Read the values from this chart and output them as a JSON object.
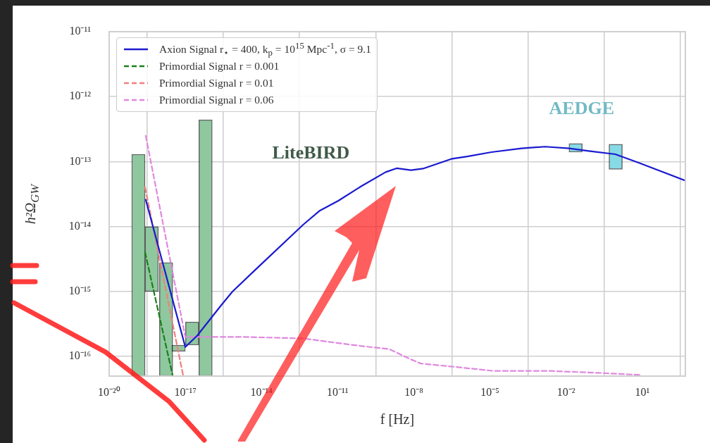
{
  "chart_data": {
    "type": "line",
    "xlabel": "f [Hz]",
    "ylabel": "h²Ω$_{GW}$",
    "log": "xy",
    "grid": true,
    "legend": "top left",
    "xlim": [
      1e-20,
      500
    ],
    "ylim": [
      5e-17,
      1e-11
    ],
    "xticks": [
      {
        "value": 1e-20,
        "label": "10⁻²⁰"
      },
      {
        "value": 1e-17,
        "label": "10⁻¹⁷"
      },
      {
        "value": 1e-14,
        "label": "10⁻¹⁴"
      },
      {
        "value": 1e-11,
        "label": "10⁻¹¹"
      },
      {
        "value": 1e-08,
        "label": "10⁻⁸"
      },
      {
        "value": 1e-05,
        "label": "10⁻⁵"
      },
      {
        "value": 0.01,
        "label": "10⁻²"
      },
      {
        "value": 10,
        "label": "10¹"
      }
    ],
    "yticks": [
      {
        "value": 1e-16,
        "label": "10⁻¹⁶"
      },
      {
        "value": 1e-15,
        "label": "10⁻¹⁵"
      },
      {
        "value": 1e-14,
        "label": "10⁻¹⁴"
      },
      {
        "value": 1e-13,
        "label": "10⁻¹³"
      },
      {
        "value": 1e-12,
        "label": "10⁻¹²"
      },
      {
        "value": 1e-11,
        "label": "10⁻¹¹"
      }
    ],
    "annotations": [
      "LiteBIRD",
      "AEDGE"
    ],
    "series": [
      {
        "type": "bar",
        "color": "#8fc89f",
        "x": [
          2.6e-19,
          8.7e-19,
          3.2e-18,
          1e-17,
          3.4e-17,
          1.15e-16
        ],
        "base": [
          5e-17,
          1e-15,
          5e-17,
          1.2e-16,
          1.5e-16,
          5e-17
        ],
        "values": [
          1.2995e-13,
          9e-15,
          2.75e-15,
          3e-17,
          1.9e-16,
          4.3995e-13
        ]
      },
      {
        "type": "bar",
        "color": "#86dbe6",
        "x": [
          0.013,
          0.49
        ],
        "base": [
          1.4e-13,
          7.6e-14
        ],
        "values": [
          5e-14,
          1.09e-13
        ]
      },
      {
        "name": "Axion Signal r$_{⋆}$ = 400, k$_{p}$ = 10$^{15}$ Mpc$^{-1}$, σ = 9.1",
        "color": "#1a1ad0",
        "line_style": "solid",
        "x": [
          2.75e-19,
          1e-17,
          2.95e-17,
          2.45e-16,
          7.2e-16,
          6e-15,
          4.4e-13,
          1.9e-12,
          1.07e-11,
          8.7e-11,
          7.8e-10,
          2.1e-09,
          7.8e-09,
          2.3e-08,
          3e-07,
          1.3e-06,
          1.15e-05,
          0.00018,
          0.0015,
          0.013,
          0.087,
          0.87,
          7.8,
          500
        ],
        "values": [
          2.6e-14,
          1.4e-16,
          2.1e-16,
          6e-16,
          1e-15,
          2.2e-15,
          1.07e-14,
          1.74e-14,
          2.5e-14,
          4.2e-14,
          6.9e-14,
          7.9e-14,
          7.4e-14,
          7.8e-14,
          1.1e-13,
          1.2e-13,
          1.4e-13,
          1.6e-13,
          1.7e-13,
          1.6e-13,
          1.45e-13,
          1.3e-13,
          9.5e-14,
          5.1e-14
        ]
      },
      {
        "name": "Primordial Signal r = 0.001",
        "color": "#1a801a",
        "line_style": "dashed",
        "x": [
          2.6e-19,
          3.2e-18
        ],
        "values": [
          4e-15,
          5e-17
        ]
      },
      {
        "name": "Primordial Signal r = 0.01",
        "color": "#f08080",
        "line_style": "dashed",
        "x": [
          2.6e-19,
          8.3e-18
        ],
        "values": [
          4e-14,
          5e-17
        ]
      },
      {
        "name": "Primordial Signal r = 0.06",
        "color": "#e088e0",
        "line_style": "dashed",
        "x": [
          2.75e-19,
          1e-17,
          2.1e-15,
          4.4e-13,
          3.6e-12,
          8.7e-11,
          1.1e-09,
          6.5e-09,
          1.9e-08,
          4.7e-07,
          1.4e-05,
          0.0023,
          0.2,
          9.3
        ],
        "values": [
          2.5e-13,
          2e-16,
          2e-16,
          1.9e-16,
          1.7e-16,
          1.45e-16,
          1.3e-16,
          9.3e-17,
          7.8e-17,
          6.9e-17,
          6e-17,
          6e-17,
          5.6e-17,
          5.2e-17
        ]
      }
    ]
  }
}
